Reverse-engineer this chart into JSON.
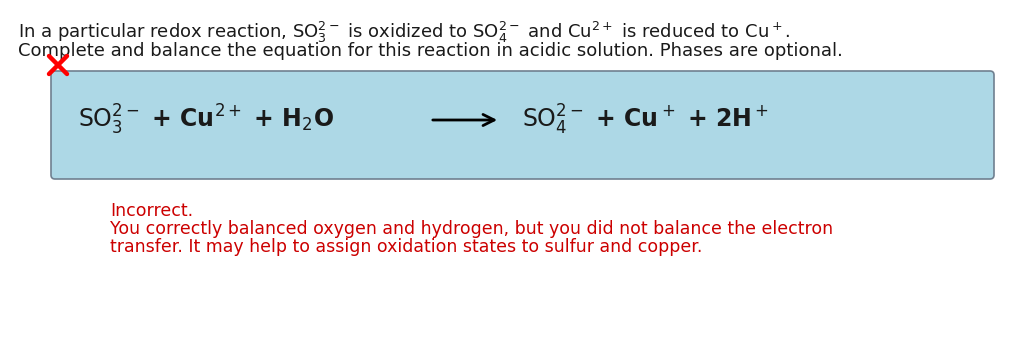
{
  "bg_color": "#ffffff",
  "box_color": "#add8e6",
  "box_edge_color": "#708090",
  "incorrect_text": "Incorrect.",
  "feedback_line1": "You correctly balanced oxygen and hydrogen, but you did not balance the electron",
  "feedback_line2": "transfer. It may help to assign oxidation states to sulfur and copper.",
  "red_color": "#cc0000",
  "text_color": "#1a1a1a",
  "header_fontsize": 13.0,
  "equation_fontsize": 17.0,
  "feedback_fontsize": 12.5,
  "fig_width": 10.24,
  "fig_height": 3.6,
  "xlim": [
    0,
    1024
  ],
  "ylim": [
    0,
    360
  ]
}
